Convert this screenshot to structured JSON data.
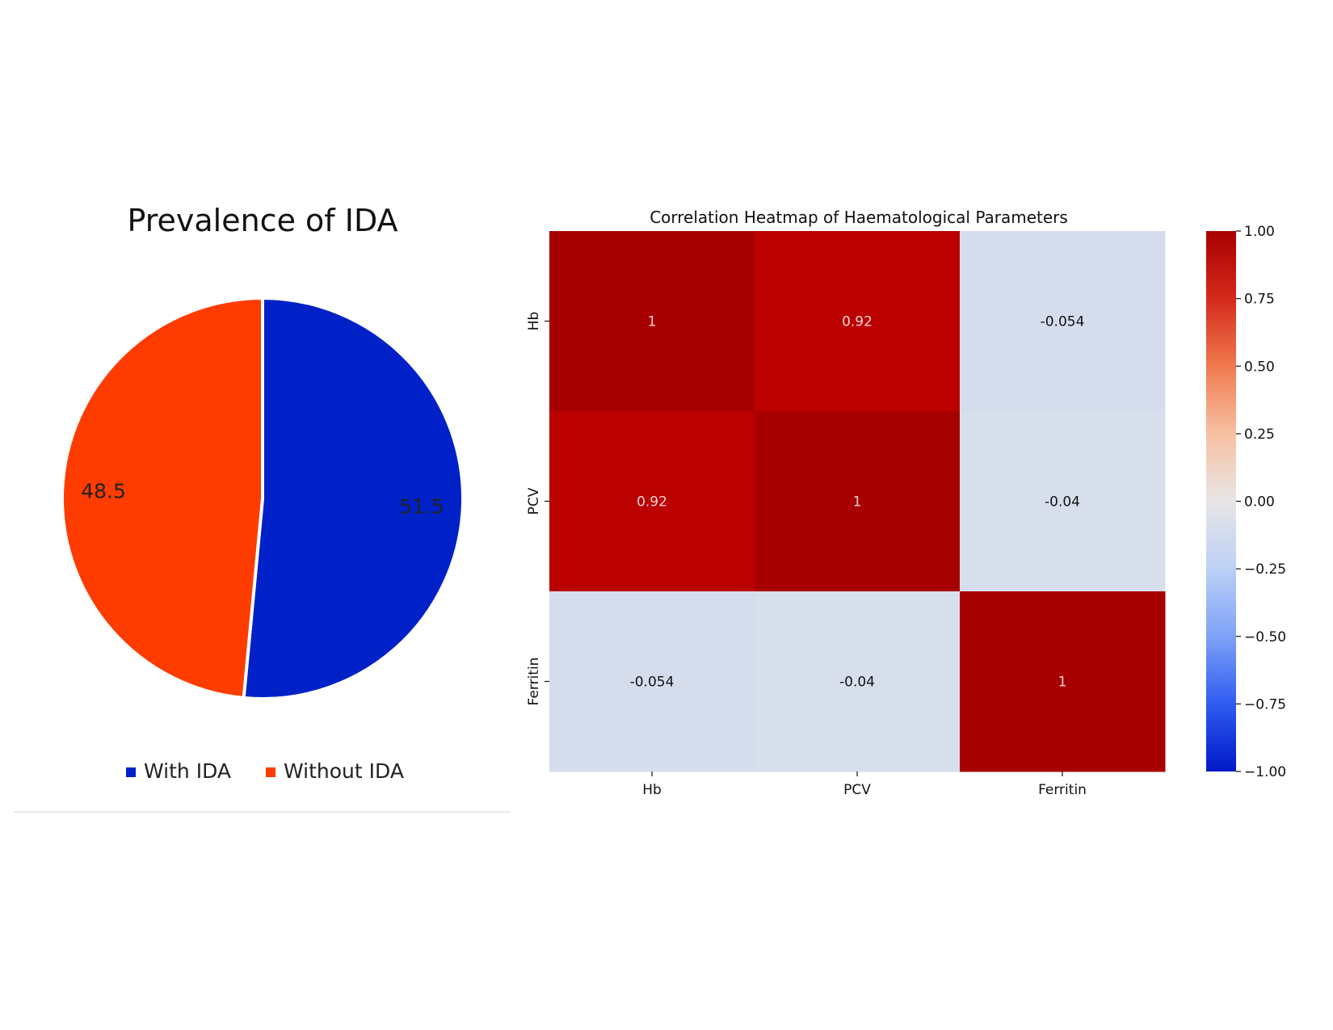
{
  "chart_data": [
    {
      "type": "pie",
      "title": "Prevalence of IDA",
      "slices": [
        {
          "name": "With IDA",
          "value": 51.5,
          "label": "51.5",
          "color": "#0021c8"
        },
        {
          "name": "Without IDA",
          "value": 48.5,
          "label": "48.5",
          "color": "#ff3c00"
        }
      ],
      "legend_position": "bottom"
    },
    {
      "type": "heatmap",
      "title": "Correlation Heatmap of Haematological Parameters",
      "x_labels": [
        "Hb",
        "PCV",
        "Ferritin"
      ],
      "y_labels": [
        "Hb",
        "PCV",
        "Ferritin"
      ],
      "values": [
        [
          1,
          0.92,
          -0.054
        ],
        [
          0.92,
          1,
          -0.04
        ],
        [
          -0.054,
          -0.04,
          1
        ]
      ],
      "annotations": [
        [
          "1",
          "0.92",
          "-0.054"
        ],
        [
          "0.92",
          "1",
          "-0.04"
        ],
        [
          "-0.054",
          "-0.04",
          "1"
        ]
      ],
      "colormap": "coolwarm",
      "vmin": -1.0,
      "vmax": 1.0,
      "colorbar_ticks": [
        "1.00",
        "0.75",
        "0.50",
        "0.25",
        "0.00",
        "−0.25",
        "−0.50",
        "−0.75",
        "−1.00"
      ]
    }
  ]
}
